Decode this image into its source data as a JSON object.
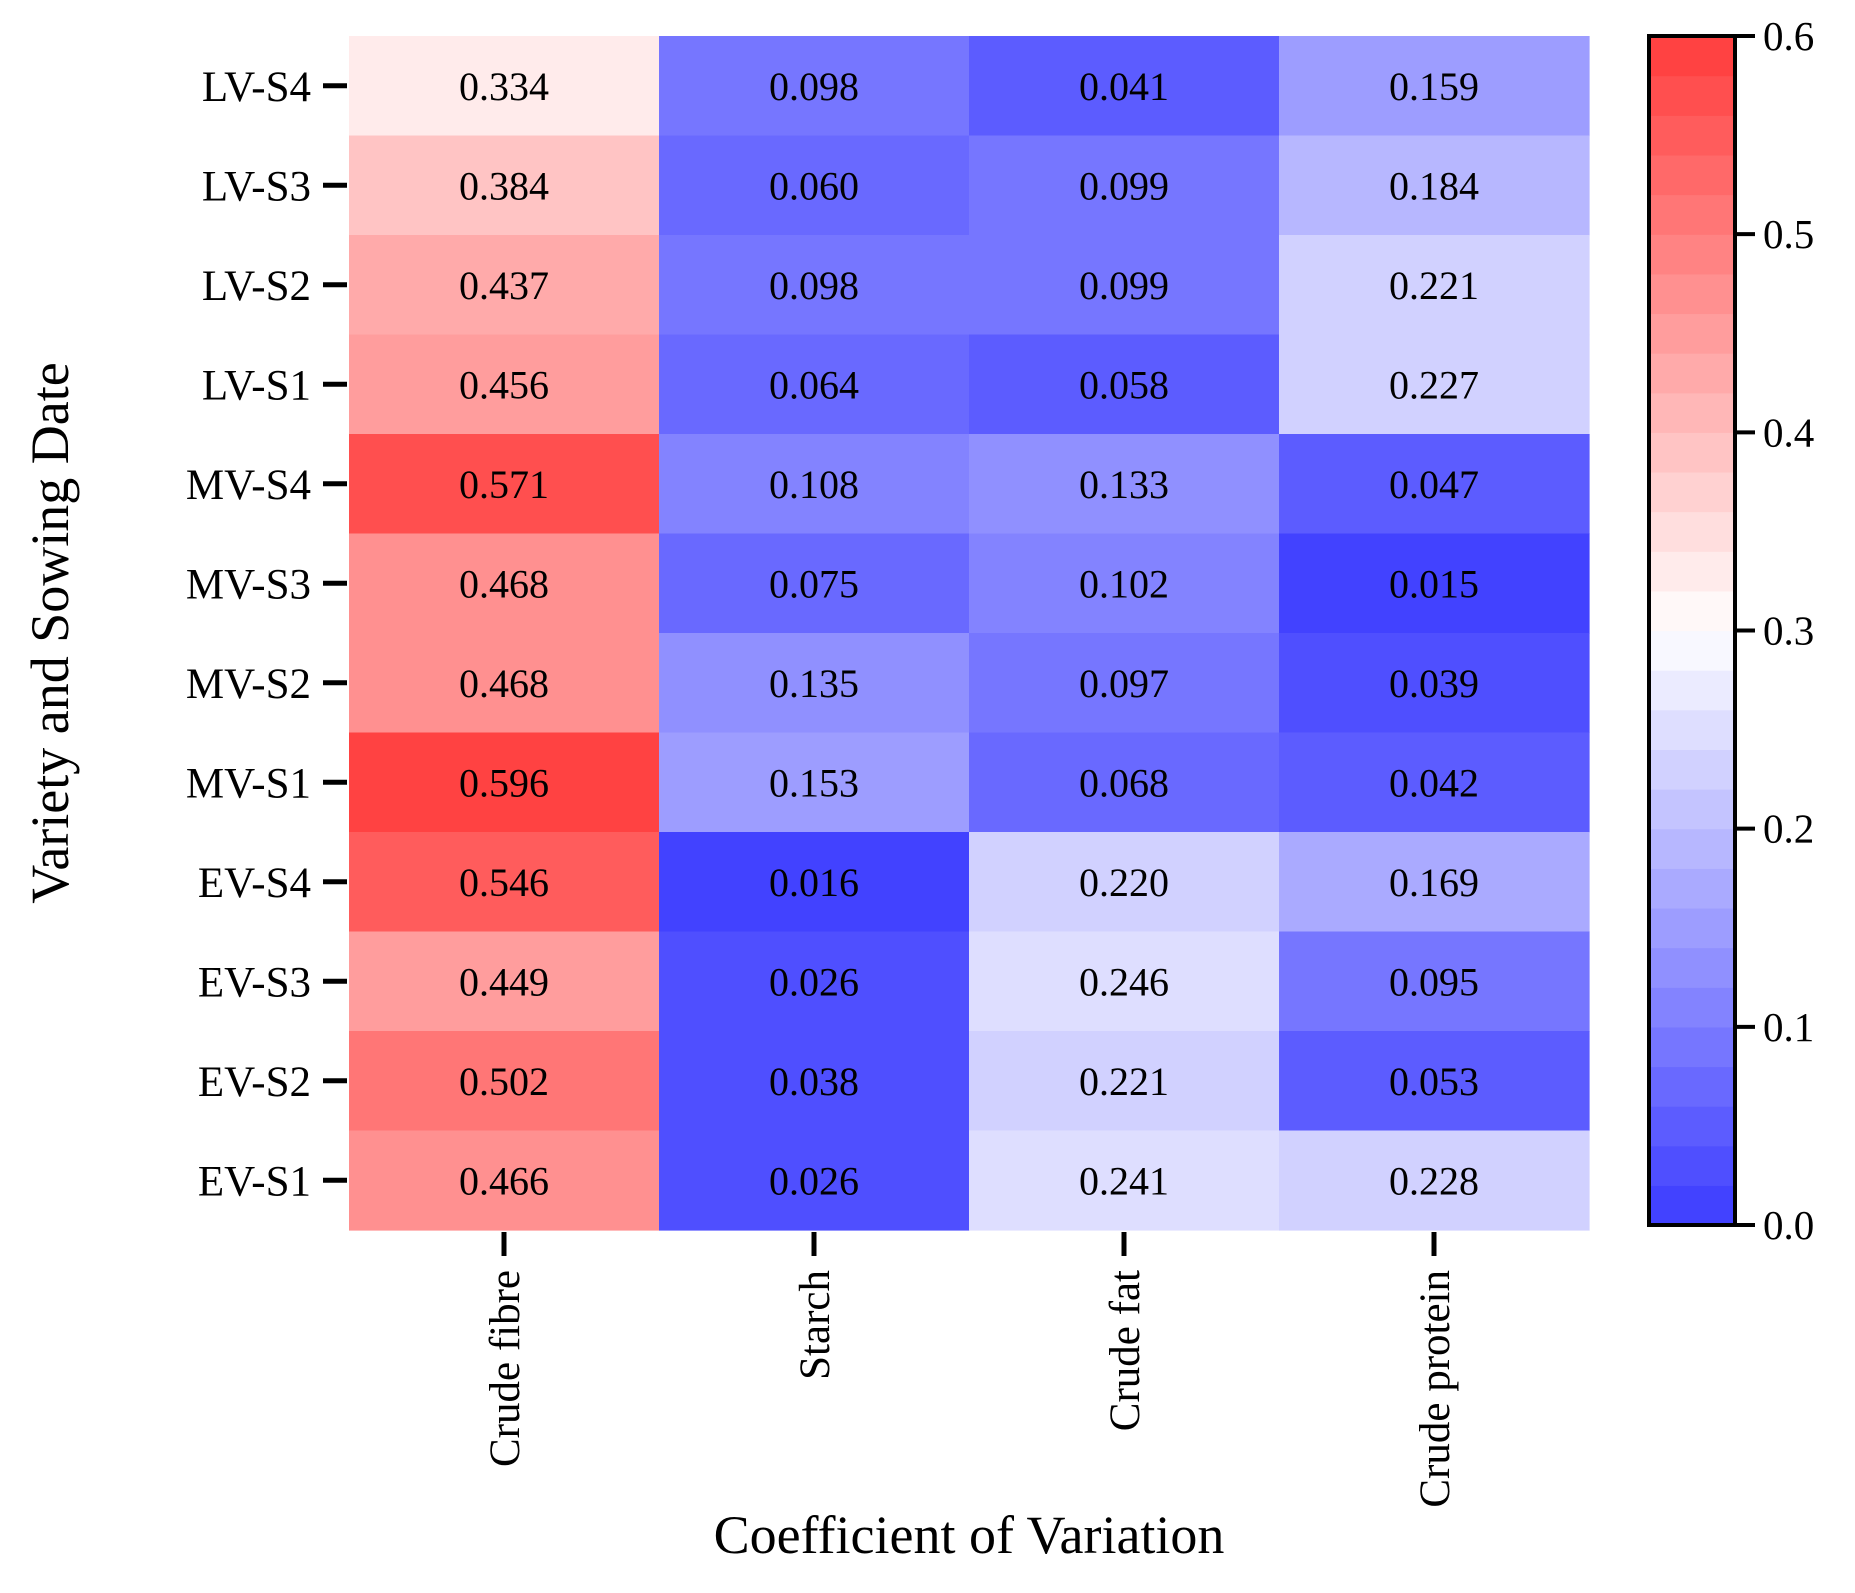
{
  "chart_data": {
    "type": "heatmap",
    "xlabel": "Coefficient of Variation",
    "ylabel": "Variety and Sowing Date",
    "x_categories": [
      "Crude fibre",
      "Starch",
      "Crude fat",
      "Crude protein"
    ],
    "y_categories": [
      "LV-S4",
      "LV-S3",
      "LV-S2",
      "LV-S1",
      "MV-S4",
      "MV-S3",
      "MV-S2",
      "MV-S1",
      "EV-S4",
      "EV-S3",
      "EV-S2",
      "EV-S1"
    ],
    "values": [
      [
        0.334,
        0.098,
        0.041,
        0.159
      ],
      [
        0.384,
        0.06,
        0.099,
        0.184
      ],
      [
        0.437,
        0.098,
        0.099,
        0.221
      ],
      [
        0.456,
        0.064,
        0.058,
        0.227
      ],
      [
        0.571,
        0.108,
        0.133,
        0.047
      ],
      [
        0.468,
        0.075,
        0.102,
        0.015
      ],
      [
        0.468,
        0.135,
        0.097,
        0.039
      ],
      [
        0.596,
        0.153,
        0.068,
        0.042
      ],
      [
        0.546,
        0.016,
        0.22,
        0.169
      ],
      [
        0.449,
        0.026,
        0.246,
        0.095
      ],
      [
        0.502,
        0.038,
        0.221,
        0.053
      ],
      [
        0.466,
        0.026,
        0.241,
        0.228
      ]
    ],
    "value_labels": [
      [
        "0.334",
        "0.098",
        "0.041",
        "0.159"
      ],
      [
        "0.384",
        "0.060",
        "0.099",
        "0.184"
      ],
      [
        "0.437",
        "0.098",
        "0.099",
        "0.221"
      ],
      [
        "0.456",
        "0.064",
        "0.058",
        "0.227"
      ],
      [
        "0.571",
        "0.108",
        "0.133",
        "0.047"
      ],
      [
        "0.468",
        "0.075",
        "0.102",
        "0.015"
      ],
      [
        "0.468",
        "0.135",
        "0.097",
        "0.039"
      ],
      [
        "0.596",
        "0.153",
        "0.068",
        "0.042"
      ],
      [
        "0.546",
        "0.016",
        "0.220",
        "0.169"
      ],
      [
        "0.449",
        "0.026",
        "0.246",
        "0.095"
      ],
      [
        "0.502",
        "0.038",
        "0.221",
        "0.053"
      ],
      [
        "0.466",
        "0.026",
        "0.241",
        "0.228"
      ]
    ],
    "colorbar": {
      "range": [
        0.0,
        0.6
      ],
      "ticks": [
        0.0,
        0.1,
        0.2,
        0.3,
        0.4,
        0.5,
        0.6
      ],
      "tick_labels": [
        "0.0",
        "0.1",
        "0.2",
        "0.3",
        "0.4",
        "0.5",
        "0.6"
      ],
      "low_color": "#3b3bff",
      "mid_color": "#ffffff",
      "high_color": "#ff3b3b",
      "mid_value": 0.3,
      "levels": 30
    }
  }
}
